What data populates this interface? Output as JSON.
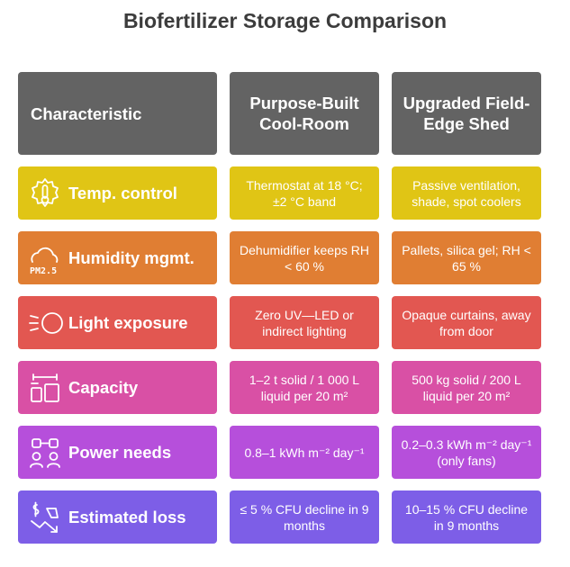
{
  "title": "Biofertilizer Storage Comparison",
  "headers": [
    "Characteristic",
    "Purpose-Built Cool-Room",
    "Upgraded Field-Edge Shed"
  ],
  "rows": [
    {
      "label": "Temp. control",
      "icon": "thermostat-gear-icon",
      "color": "#e0c515",
      "cool_room": "Thermostat at 18 °C; ±2 °C band",
      "shed": "Passive ventilation, shade, spot coolers"
    },
    {
      "label": "Humidity mgmt.",
      "icon": "cloud-pm25-icon",
      "icon_text": "PM2.5",
      "color": "#e07e33",
      "cool_room": "Dehumidifier keeps RH < 60 %",
      "shed": "Pallets, silica gel; RH < 65 %"
    },
    {
      "label": "Light exposure",
      "icon": "light-beam-icon",
      "color": "#e25751",
      "cool_room": "Zero UV—LED or indirect lighting",
      "shed": "Opaque curtains, away from door"
    },
    {
      "label": "Capacity",
      "icon": "storage-capacity-icon",
      "color": "#d950a5",
      "cool_room": "1–2 t solid / 1 000 L liquid per 20 m²",
      "shed": "500 kg solid / 200 L liquid per 20 m²"
    },
    {
      "label": "Power needs",
      "icon": "power-plug-icon",
      "color": "#b64fdb",
      "cool_room": "0.8–1 kWh m⁻² day⁻¹",
      "shed": "0.2–0.3 kWh m⁻² day⁻¹ (only fans)"
    },
    {
      "label": "Estimated loss",
      "icon": "money-decline-icon",
      "color": "#7d5ee7",
      "cool_room": "≤ 5 % CFU decline in 9 months",
      "shed": "10–15 % CFU decline in 9 months"
    }
  ]
}
